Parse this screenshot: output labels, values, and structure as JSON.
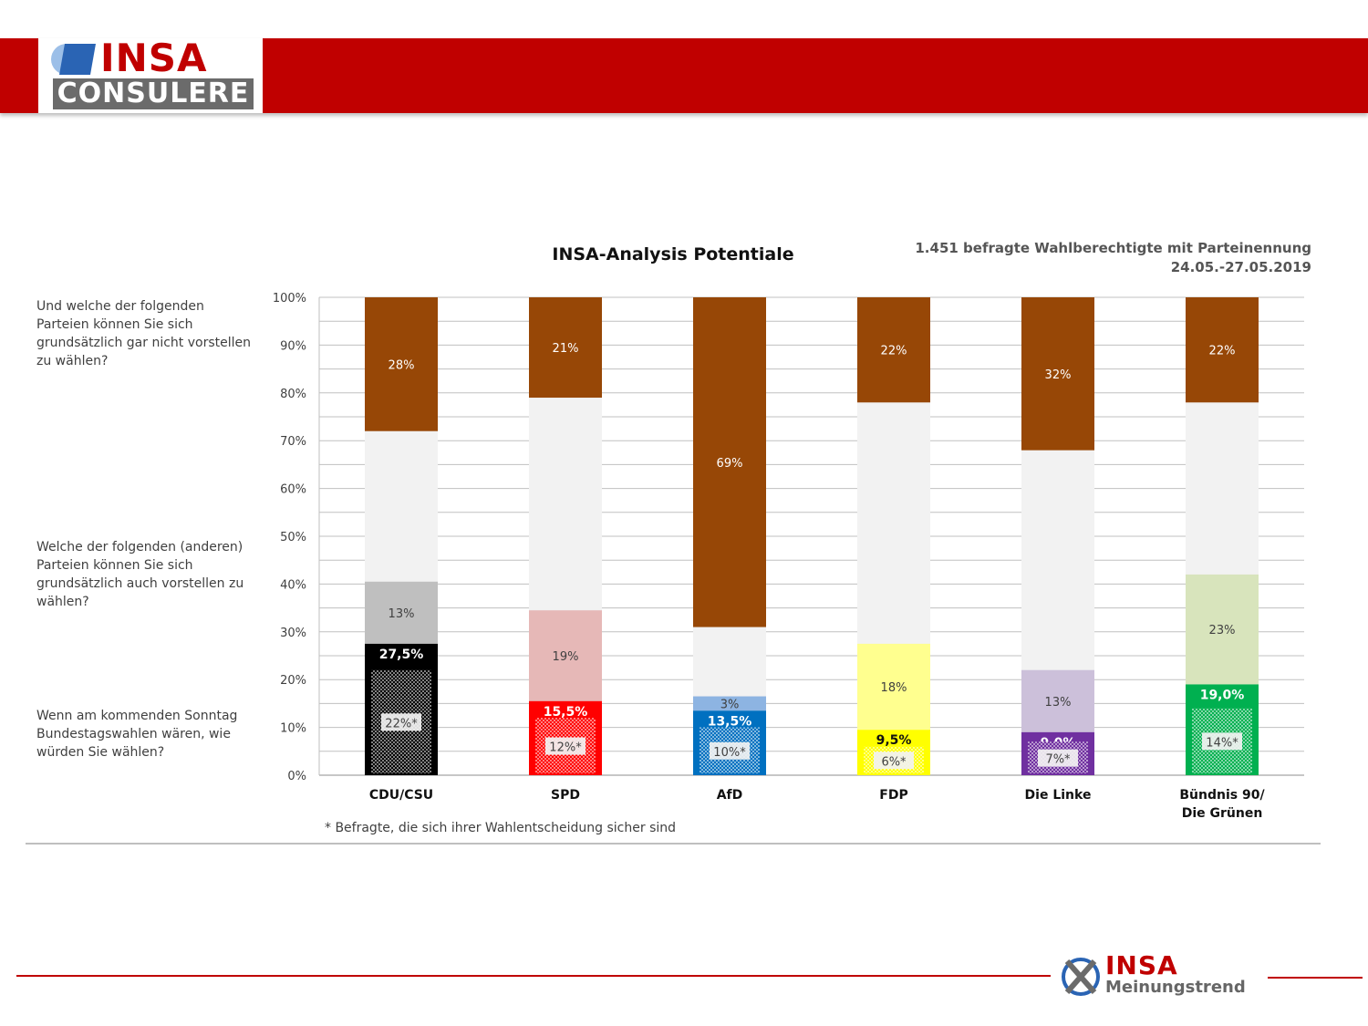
{
  "header": {
    "logo_top": "INSA",
    "logo_bottom": "CONSULERE"
  },
  "questions": {
    "q1": "Und welche der folgenden Parteien können Sie sich grundsätzlich gar nicht vorstellen zu wählen?",
    "q2": "Welche der folgenden (anderen) Parteien können Sie sich grundsätzlich auch vorstellen zu wählen?",
    "q3": "Wenn am kommenden Sonntag Bundestagswahlen wären, wie würden Sie wählen?"
  },
  "meta": {
    "line1": "1.451 befragte Wahlberechtigte mit Parteinennung",
    "line2": "24.05.-27.05.2019"
  },
  "footnote": "* Befragte, die sich ihrer Wahlentscheidung sicher sind",
  "footer": {
    "logo_top": "INSA",
    "logo_bottom": "Meinungstrend"
  },
  "chart_data": {
    "type": "bar",
    "stacked": true,
    "title": "INSA-Analysis Potentiale",
    "ylim": [
      0,
      100
    ],
    "yticks": [
      "0%",
      "10%",
      "20%",
      "30%",
      "40%",
      "50%",
      "60%",
      "70%",
      "80%",
      "90%",
      "100%"
    ],
    "grid": true,
    "categories": [
      [
        "CDU/CSU"
      ],
      [
        "SPD"
      ],
      [
        "AfD"
      ],
      [
        "FDP"
      ],
      [
        "Die Linke"
      ],
      [
        "Bündnis 90/",
        "Die Grünen"
      ]
    ],
    "series": [
      {
        "role": "vote",
        "values": [
          27.5,
          15.5,
          13.5,
          9.5,
          9.0,
          19.0
        ],
        "labels": [
          "27,5%",
          "15,5%",
          "13,5%",
          "9,5%",
          "9,0%",
          "19,0%"
        ]
      },
      {
        "role": "sure_voters",
        "values": [
          22,
          12,
          10,
          6,
          7,
          14
        ],
        "labels": [
          "22%*",
          "12%*",
          "10%*",
          "6%*",
          "7%*",
          "14%*"
        ]
      },
      {
        "role": "could_vote",
        "values": [
          13,
          19,
          3,
          18,
          13,
          23
        ],
        "labels": [
          "13%",
          "19%",
          "3%",
          "18%",
          "13%",
          "23%"
        ]
      },
      {
        "role": "would_never_vote",
        "values": [
          28,
          21,
          69,
          22,
          32,
          22
        ],
        "labels": [
          "28%",
          "21%",
          "69%",
          "22%",
          "32%",
          "22%"
        ]
      }
    ],
    "colors": {
      "vote": [
        "#000000",
        "#ff0000",
        "#0070c0",
        "#ffff00",
        "#7030a0",
        "#00b050"
      ],
      "could_vote": [
        "#bfbfbf",
        "#e6b8b7",
        "#8db4e2",
        "#ffff8f",
        "#ccc0da",
        "#d8e4bc"
      ],
      "remainder": "#f2f2f2",
      "never": "#974706"
    }
  }
}
